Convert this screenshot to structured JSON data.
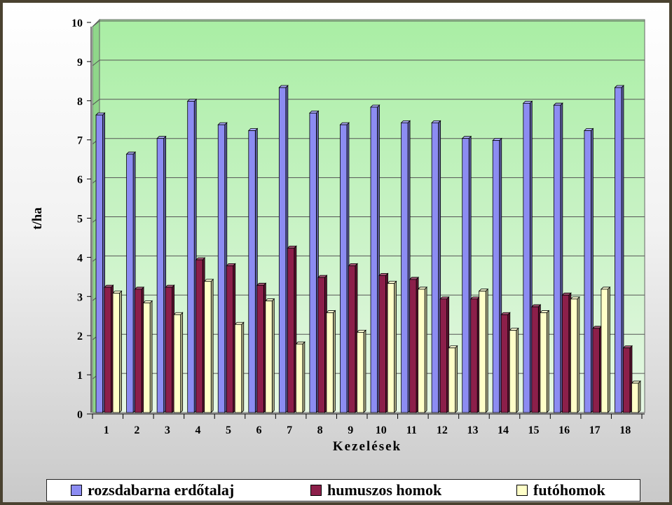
{
  "chart_data": {
    "type": "bar",
    "title": "",
    "xlabel": "Kezelések",
    "ylabel": "t/ha",
    "ylim": [
      0,
      10
    ],
    "yticks": [
      "0",
      "1",
      "2",
      "3",
      "4",
      "5",
      "6",
      "7",
      "8",
      "9",
      "10"
    ],
    "categories": [
      "1",
      "2",
      "3",
      "4",
      "5",
      "6",
      "7",
      "8",
      "9",
      "10",
      "11",
      "12",
      "13",
      "14",
      "15",
      "16",
      "17",
      "18"
    ],
    "grid": true,
    "legend_position": "bottom",
    "series": [
      {
        "name": "rozsdabarna erdőtalaj",
        "color": "#8c8cf2",
        "values": [
          7.6,
          6.6,
          7.0,
          7.95,
          7.35,
          7.2,
          8.3,
          7.65,
          7.35,
          7.8,
          7.4,
          7.4,
          7.0,
          6.95,
          7.9,
          7.85,
          7.2,
          8.3
        ]
      },
      {
        "name": "humuszos homok",
        "color": "#8c1f4a",
        "values": [
          3.2,
          3.15,
          3.2,
          3.9,
          3.75,
          3.25,
          4.2,
          3.45,
          3.75,
          3.5,
          3.4,
          2.9,
          2.9,
          2.5,
          2.7,
          3.0,
          2.15,
          1.65
        ]
      },
      {
        "name": "futóhomok",
        "color": "#ffffc8",
        "values": [
          3.05,
          2.8,
          2.5,
          3.35,
          2.25,
          2.85,
          1.75,
          2.55,
          2.05,
          3.3,
          3.15,
          1.65,
          3.1,
          2.1,
          2.55,
          2.9,
          3.15,
          0.75
        ]
      }
    ]
  },
  "legend": {
    "items": [
      {
        "label": "rozsdabarna erdőtalaj",
        "color": "#8c8cf2"
      },
      {
        "label": "humuszos homok",
        "color": "#8c1f4a"
      },
      {
        "label": "futóhomok",
        "color": "#ffffc8"
      }
    ]
  }
}
